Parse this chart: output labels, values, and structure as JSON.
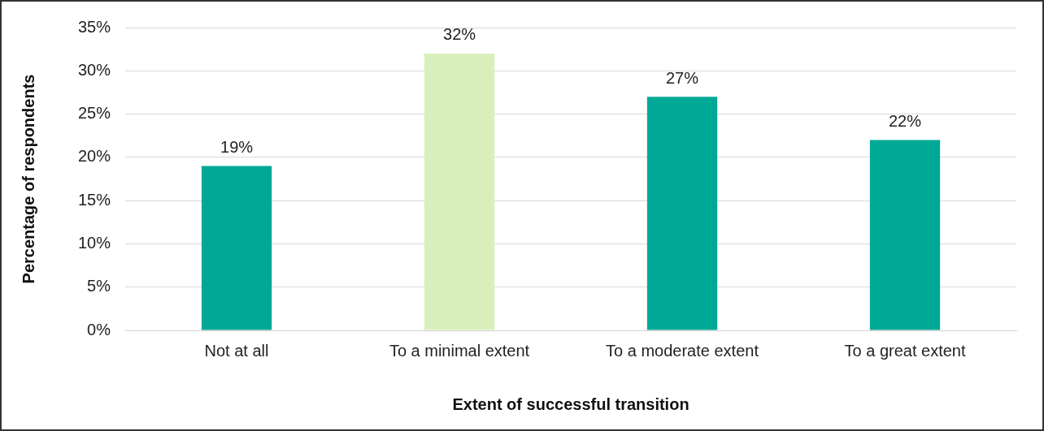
{
  "chart_data": {
    "type": "bar",
    "xlabel": "Extent of successful transition",
    "ylabel": "Percentage of respondents",
    "categories": [
      "Not at all",
      "To a minimal extent",
      "To a moderate extent",
      "To a great extent"
    ],
    "values": [
      19,
      32,
      27,
      22
    ],
    "colors": [
      "#00a896",
      "#d9efbb",
      "#00a896",
      "#00a896"
    ],
    "value_labels": [
      "19%",
      "32%",
      "27%",
      "22%"
    ],
    "ylim": [
      0,
      35
    ],
    "yticks": [
      {
        "value": 0,
        "label": "0%"
      },
      {
        "value": 5,
        "label": "5%"
      },
      {
        "value": 10,
        "label": "10%"
      },
      {
        "value": 15,
        "label": "15%"
      },
      {
        "value": 20,
        "label": "20%"
      },
      {
        "value": 25,
        "label": "25%"
      },
      {
        "value": 30,
        "label": "30%"
      },
      {
        "value": 35,
        "label": "35%"
      }
    ],
    "grid": "y",
    "legend": false
  }
}
